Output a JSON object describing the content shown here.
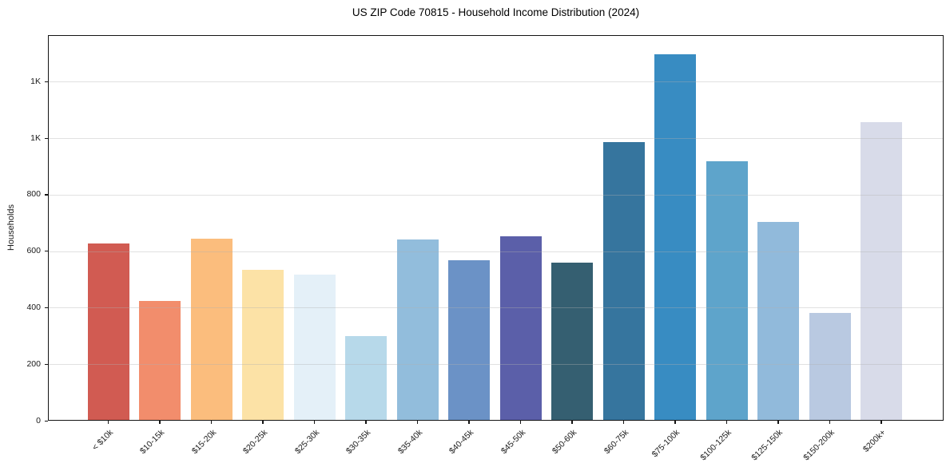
{
  "chart_data": {
    "type": "bar",
    "title": "US ZIP Code 70815 - Household Income Distribution (2024)",
    "xlabel": "",
    "ylabel": "Households",
    "categories": [
      "< $10k",
      "$10-15k",
      "$15-20k",
      "$20-25k",
      "$25-30k",
      "$30-35k",
      "$35-40k",
      "$40-45k",
      "$45-50k",
      "$50-60k",
      "$60-75k",
      "$75-100k",
      "$100-125k",
      "$125-150k",
      "$150-200k",
      "$200k+"
    ],
    "values": [
      627,
      424,
      643,
      533,
      517,
      299,
      641,
      568,
      653,
      559,
      986,
      1297,
      918,
      704,
      382,
      1057
    ],
    "bar_colors": [
      "#d15b52",
      "#f28d6c",
      "#fbbd7d",
      "#fce2a6",
      "#e4f0f8",
      "#b7d9ea",
      "#92bddc",
      "#6b92c6",
      "#5b5fa9",
      "#355f71",
      "#36759e",
      "#388cc2",
      "#5ea4cb",
      "#91badb",
      "#b9c9e1",
      "#d8dbe9"
    ],
    "ylim": [
      0,
      1365
    ],
    "yticks": {
      "values": [
        0,
        200,
        400,
        600,
        800,
        1000,
        1200
      ],
      "labels": [
        "0",
        "200",
        "400",
        "600",
        "800",
        "1K",
        "1K"
      ]
    },
    "grid": "horizontal, drawn above bars",
    "legend": "none",
    "x_tick_rotation": 45
  }
}
